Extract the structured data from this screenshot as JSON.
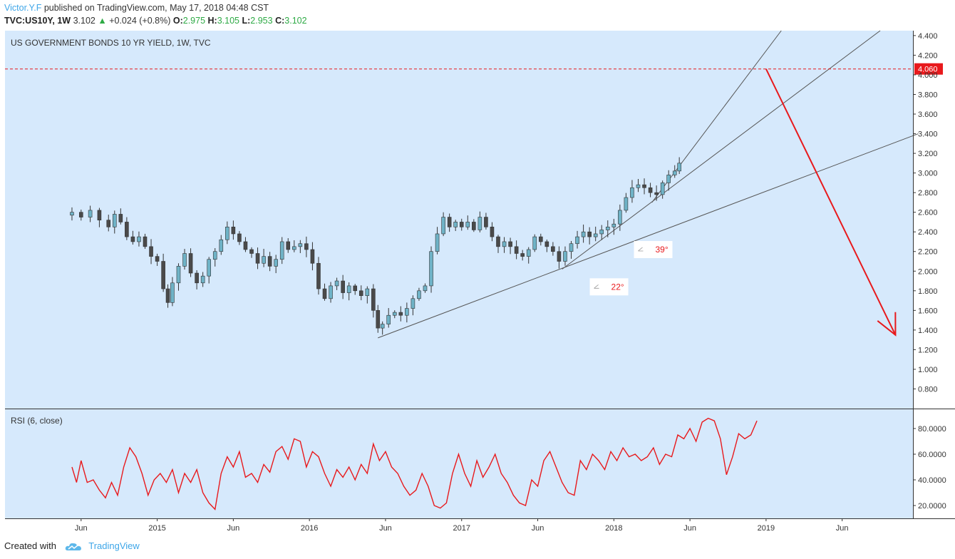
{
  "header": {
    "author": "Victor.Y.F",
    "published": "published on TradingView.com, May 17, 2018 04:48 CST"
  },
  "info": {
    "symbol": "TVC:US10Y, 1W",
    "last": "3.102",
    "change": "+0.024 (+0.8%)",
    "o_label": "O:",
    "o": "2.975",
    "h_label": "H:",
    "h": "3.105",
    "l_label": "L:",
    "l": "2.953",
    "c_label": "C:",
    "c": "3.102"
  },
  "footer": {
    "created_with": "Created with",
    "brand": "TradingView"
  },
  "colors": {
    "plot_bg": "#d6e9fc",
    "up_candle": "#6fb3c7",
    "down_candle": "#4a4a4a",
    "rsi_line": "#e8191c",
    "level_line": "#e8191c",
    "arrow": "#e8191c",
    "trendline": "#555555"
  },
  "chart_data": [
    {
      "type": "candlestick",
      "title": "US GOVERNMENT BONDS 10 YR YIELD, 1W, TVC",
      "ylim": [
        0.6,
        4.45
      ],
      "y_ticks": [
        "0.800",
        "1.000",
        "1.200",
        "1.400",
        "1.600",
        "1.800",
        "2.000",
        "2.200",
        "2.400",
        "2.600",
        "2.800",
        "3.000",
        "3.200",
        "3.400",
        "3.600",
        "3.800",
        "4.000",
        "4.200",
        "4.400"
      ],
      "x_ticks": [
        {
          "label": "Jun",
          "t": 0.5
        },
        {
          "label": "2015",
          "t": 1.0
        },
        {
          "label": "Jun",
          "t": 1.5
        },
        {
          "label": "2016",
          "t": 2.0
        },
        {
          "label": "Jun",
          "t": 2.5
        },
        {
          "label": "2017",
          "t": 3.0
        },
        {
          "label": "Jun",
          "t": 3.5
        },
        {
          "label": "2018",
          "t": 4.0
        },
        {
          "label": "Jun",
          "t": 4.5
        },
        {
          "label": "2019",
          "t": 5.0
        },
        {
          "label": "Jun",
          "t": 5.5
        }
      ],
      "close_series": [
        {
          "t": 0.44,
          "v": 2.6
        },
        {
          "t": 0.5,
          "v": 2.55
        },
        {
          "t": 0.56,
          "v": 2.62
        },
        {
          "t": 0.62,
          "v": 2.52
        },
        {
          "t": 0.68,
          "v": 2.45
        },
        {
          "t": 0.72,
          "v": 2.58
        },
        {
          "t": 0.76,
          "v": 2.5
        },
        {
          "t": 0.8,
          "v": 2.35
        },
        {
          "t": 0.84,
          "v": 2.3
        },
        {
          "t": 0.88,
          "v": 2.35
        },
        {
          "t": 0.92,
          "v": 2.25
        },
        {
          "t": 0.96,
          "v": 2.15
        },
        {
          "t": 1.0,
          "v": 2.1
        },
        {
          "t": 1.04,
          "v": 1.82
        },
        {
          "t": 1.07,
          "v": 1.68
        },
        {
          "t": 1.1,
          "v": 1.88
        },
        {
          "t": 1.14,
          "v": 2.05
        },
        {
          "t": 1.18,
          "v": 2.18
        },
        {
          "t": 1.22,
          "v": 1.98
        },
        {
          "t": 1.26,
          "v": 1.88
        },
        {
          "t": 1.3,
          "v": 1.95
        },
        {
          "t": 1.34,
          "v": 2.12
        },
        {
          "t": 1.38,
          "v": 2.2
        },
        {
          "t": 1.42,
          "v": 2.32
        },
        {
          "t": 1.46,
          "v": 2.45
        },
        {
          "t": 1.5,
          "v": 2.38
        },
        {
          "t": 1.54,
          "v": 2.3
        },
        {
          "t": 1.58,
          "v": 2.22
        },
        {
          "t": 1.62,
          "v": 2.18
        },
        {
          "t": 1.66,
          "v": 2.08
        },
        {
          "t": 1.7,
          "v": 2.15
        },
        {
          "t": 1.74,
          "v": 2.05
        },
        {
          "t": 1.78,
          "v": 2.12
        },
        {
          "t": 1.82,
          "v": 2.3
        },
        {
          "t": 1.86,
          "v": 2.22
        },
        {
          "t": 1.9,
          "v": 2.25
        },
        {
          "t": 1.94,
          "v": 2.28
        },
        {
          "t": 1.98,
          "v": 2.22
        },
        {
          "t": 2.02,
          "v": 2.08
        },
        {
          "t": 2.06,
          "v": 1.82
        },
        {
          "t": 2.1,
          "v": 1.72
        },
        {
          "t": 2.14,
          "v": 1.85
        },
        {
          "t": 2.18,
          "v": 1.9
        },
        {
          "t": 2.22,
          "v": 1.78
        },
        {
          "t": 2.26,
          "v": 1.85
        },
        {
          "t": 2.3,
          "v": 1.8
        },
        {
          "t": 2.34,
          "v": 1.75
        },
        {
          "t": 2.38,
          "v": 1.82
        },
        {
          "t": 2.42,
          "v": 1.6
        },
        {
          "t": 2.45,
          "v": 1.42
        },
        {
          "t": 2.48,
          "v": 1.46
        },
        {
          "t": 2.52,
          "v": 1.55
        },
        {
          "t": 2.56,
          "v": 1.58
        },
        {
          "t": 2.6,
          "v": 1.55
        },
        {
          "t": 2.64,
          "v": 1.62
        },
        {
          "t": 2.68,
          "v": 1.72
        },
        {
          "t": 2.72,
          "v": 1.8
        },
        {
          "t": 2.76,
          "v": 1.85
        },
        {
          "t": 2.8,
          "v": 2.2
        },
        {
          "t": 2.84,
          "v": 2.38
        },
        {
          "t": 2.88,
          "v": 2.55
        },
        {
          "t": 2.92,
          "v": 2.45
        },
        {
          "t": 2.96,
          "v": 2.5
        },
        {
          "t": 3.0,
          "v": 2.45
        },
        {
          "t": 3.04,
          "v": 2.5
        },
        {
          "t": 3.08,
          "v": 2.42
        },
        {
          "t": 3.12,
          "v": 2.55
        },
        {
          "t": 3.16,
          "v": 2.45
        },
        {
          "t": 3.2,
          "v": 2.35
        },
        {
          "t": 3.24,
          "v": 2.25
        },
        {
          "t": 3.28,
          "v": 2.3
        },
        {
          "t": 3.32,
          "v": 2.25
        },
        {
          "t": 3.36,
          "v": 2.18
        },
        {
          "t": 3.4,
          "v": 2.15
        },
        {
          "t": 3.44,
          "v": 2.22
        },
        {
          "t": 3.48,
          "v": 2.35
        },
        {
          "t": 3.52,
          "v": 2.3
        },
        {
          "t": 3.56,
          "v": 2.25
        },
        {
          "t": 3.6,
          "v": 2.2
        },
        {
          "t": 3.64,
          "v": 2.1
        },
        {
          "t": 3.68,
          "v": 2.2
        },
        {
          "t": 3.72,
          "v": 2.28
        },
        {
          "t": 3.76,
          "v": 2.35
        },
        {
          "t": 3.8,
          "v": 2.4
        },
        {
          "t": 3.84,
          "v": 2.35
        },
        {
          "t": 3.88,
          "v": 2.38
        },
        {
          "t": 3.92,
          "v": 2.42
        },
        {
          "t": 3.96,
          "v": 2.45
        },
        {
          "t": 4.0,
          "v": 2.48
        },
        {
          "t": 4.04,
          "v": 2.62
        },
        {
          "t": 4.08,
          "v": 2.75
        },
        {
          "t": 4.12,
          "v": 2.85
        },
        {
          "t": 4.16,
          "v": 2.88
        },
        {
          "t": 4.2,
          "v": 2.85
        },
        {
          "t": 4.24,
          "v": 2.8
        },
        {
          "t": 4.28,
          "v": 2.78
        },
        {
          "t": 4.32,
          "v": 2.9
        },
        {
          "t": 4.36,
          "v": 2.98
        },
        {
          "t": 4.4,
          "v": 3.02
        },
        {
          "t": 4.43,
          "v": 3.1
        }
      ],
      "price_level": {
        "label": "4.060",
        "value": 4.06
      },
      "trendlines": [
        {
          "from": {
            "t": 2.45,
            "v": 1.32
          },
          "to": {
            "t": 6.0,
            "v": 3.4
          }
        },
        {
          "from": {
            "t": 3.66,
            "v": 2.02
          },
          "to": {
            "t": 5.75,
            "v": 4.45
          }
        },
        {
          "from": {
            "t": 4.25,
            "v": 2.7
          },
          "to": {
            "t": 5.1,
            "v": 4.45
          }
        }
      ],
      "angle_labels": [
        {
          "text": "39°",
          "t": 4.16,
          "v": 2.22
        },
        {
          "text": "22°",
          "t": 3.87,
          "v": 1.84
        }
      ],
      "arrow": {
        "from": {
          "t": 5.0,
          "v": 4.06
        },
        "to": {
          "t": 5.85,
          "v": 1.35
        }
      }
    },
    {
      "type": "line",
      "title": "RSI (6, close)",
      "ylim": [
        10,
        95
      ],
      "y_ticks": [
        "20.0000",
        "40.0000",
        "60.0000",
        "80.0000"
      ],
      "series": [
        {
          "values": [
            {
              "t": 0.44,
              "v": 50
            },
            {
              "t": 0.47,
              "v": 38
            },
            {
              "t": 0.5,
              "v": 55
            },
            {
              "t": 0.54,
              "v": 38
            },
            {
              "t": 0.58,
              "v": 40
            },
            {
              "t": 0.62,
              "v": 32
            },
            {
              "t": 0.66,
              "v": 26
            },
            {
              "t": 0.7,
              "v": 38
            },
            {
              "t": 0.74,
              "v": 28
            },
            {
              "t": 0.78,
              "v": 50
            },
            {
              "t": 0.82,
              "v": 65
            },
            {
              "t": 0.86,
              "v": 58
            },
            {
              "t": 0.9,
              "v": 45
            },
            {
              "t": 0.94,
              "v": 28
            },
            {
              "t": 0.98,
              "v": 40
            },
            {
              "t": 1.02,
              "v": 45
            },
            {
              "t": 1.06,
              "v": 38
            },
            {
              "t": 1.1,
              "v": 48
            },
            {
              "t": 1.14,
              "v": 30
            },
            {
              "t": 1.18,
              "v": 45
            },
            {
              "t": 1.22,
              "v": 38
            },
            {
              "t": 1.26,
              "v": 48
            },
            {
              "t": 1.3,
              "v": 30
            },
            {
              "t": 1.34,
              "v": 22
            },
            {
              "t": 1.38,
              "v": 17
            },
            {
              "t": 1.42,
              "v": 45
            },
            {
              "t": 1.46,
              "v": 58
            },
            {
              "t": 1.5,
              "v": 50
            },
            {
              "t": 1.54,
              "v": 62
            },
            {
              "t": 1.58,
              "v": 42
            },
            {
              "t": 1.62,
              "v": 45
            },
            {
              "t": 1.66,
              "v": 38
            },
            {
              "t": 1.7,
              "v": 52
            },
            {
              "t": 1.74,
              "v": 46
            },
            {
              "t": 1.78,
              "v": 62
            },
            {
              "t": 1.82,
              "v": 66
            },
            {
              "t": 1.86,
              "v": 56
            },
            {
              "t": 1.9,
              "v": 72
            },
            {
              "t": 1.94,
              "v": 70
            },
            {
              "t": 1.98,
              "v": 50
            },
            {
              "t": 2.02,
              "v": 62
            },
            {
              "t": 2.06,
              "v": 58
            },
            {
              "t": 2.1,
              "v": 45
            },
            {
              "t": 2.14,
              "v": 35
            },
            {
              "t": 2.18,
              "v": 48
            },
            {
              "t": 2.22,
              "v": 42
            },
            {
              "t": 2.26,
              "v": 50
            },
            {
              "t": 2.3,
              "v": 40
            },
            {
              "t": 2.34,
              "v": 52
            },
            {
              "t": 2.38,
              "v": 45
            },
            {
              "t": 2.42,
              "v": 68
            },
            {
              "t": 2.46,
              "v": 55
            },
            {
              "t": 2.5,
              "v": 62
            },
            {
              "t": 2.54,
              "v": 50
            },
            {
              "t": 2.58,
              "v": 45
            },
            {
              "t": 2.62,
              "v": 35
            },
            {
              "t": 2.66,
              "v": 28
            },
            {
              "t": 2.7,
              "v": 32
            },
            {
              "t": 2.74,
              "v": 45
            },
            {
              "t": 2.78,
              "v": 35
            },
            {
              "t": 2.82,
              "v": 20
            },
            {
              "t": 2.86,
              "v": 18
            },
            {
              "t": 2.9,
              "v": 22
            },
            {
              "t": 2.94,
              "v": 45
            },
            {
              "t": 2.98,
              "v": 60
            },
            {
              "t": 3.02,
              "v": 45
            },
            {
              "t": 3.06,
              "v": 35
            },
            {
              "t": 3.1,
              "v": 55
            },
            {
              "t": 3.14,
              "v": 42
            },
            {
              "t": 3.18,
              "v": 50
            },
            {
              "t": 3.22,
              "v": 60
            },
            {
              "t": 3.26,
              "v": 45
            },
            {
              "t": 3.3,
              "v": 38
            },
            {
              "t": 3.34,
              "v": 28
            },
            {
              "t": 3.38,
              "v": 22
            },
            {
              "t": 3.42,
              "v": 20
            },
            {
              "t": 3.46,
              "v": 40
            },
            {
              "t": 3.5,
              "v": 35
            },
            {
              "t": 3.54,
              "v": 55
            },
            {
              "t": 3.58,
              "v": 62
            },
            {
              "t": 3.62,
              "v": 50
            },
            {
              "t": 3.66,
              "v": 38
            },
            {
              "t": 3.7,
              "v": 30
            },
            {
              "t": 3.74,
              "v": 28
            },
            {
              "t": 3.78,
              "v": 55
            },
            {
              "t": 3.82,
              "v": 48
            },
            {
              "t": 3.86,
              "v": 60
            },
            {
              "t": 3.9,
              "v": 55
            },
            {
              "t": 3.94,
              "v": 48
            },
            {
              "t": 3.98,
              "v": 62
            },
            {
              "t": 4.02,
              "v": 55
            },
            {
              "t": 4.06,
              "v": 65
            },
            {
              "t": 4.1,
              "v": 58
            },
            {
              "t": 4.14,
              "v": 60
            },
            {
              "t": 4.18,
              "v": 55
            },
            {
              "t": 4.22,
              "v": 58
            },
            {
              "t": 4.26,
              "v": 65
            },
            {
              "t": 4.3,
              "v": 52
            },
            {
              "t": 4.34,
              "v": 60
            },
            {
              "t": 4.38,
              "v": 58
            },
            {
              "t": 4.42,
              "v": 75
            },
            {
              "t": 4.46,
              "v": 72
            },
            {
              "t": 4.5,
              "v": 80
            },
            {
              "t": 4.54,
              "v": 70
            },
            {
              "t": 4.58,
              "v": 85
            },
            {
              "t": 4.62,
              "v": 88
            },
            {
              "t": 4.66,
              "v": 86
            },
            {
              "t": 4.7,
              "v": 72
            },
            {
              "t": 4.74,
              "v": 44
            },
            {
              "t": 4.78,
              "v": 58
            },
            {
              "t": 4.82,
              "v": 76
            },
            {
              "t": 4.86,
              "v": 72
            },
            {
              "t": 4.9,
              "v": 75
            },
            {
              "t": 4.94,
              "v": 86
            }
          ]
        }
      ]
    }
  ]
}
